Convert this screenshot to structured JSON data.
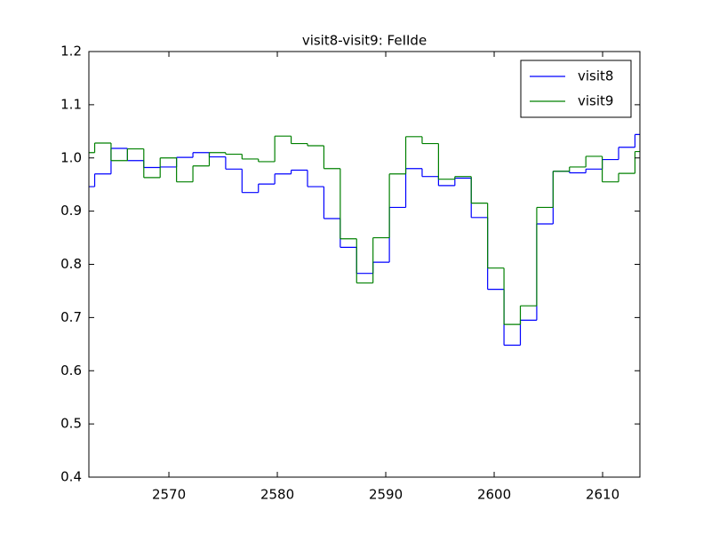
{
  "chart_data": {
    "type": "step",
    "title": "visit8-visit9: FeIIde",
    "x": [
      2562.4,
      2563.91,
      2565.42,
      2566.93,
      2568.44,
      2569.95,
      2571.46,
      2572.97,
      2574.48,
      2575.99,
      2577.5,
      2579.01,
      2580.52,
      2582.03,
      2583.54,
      2585.05,
      2586.56,
      2588.07,
      2589.58,
      2591.09,
      2592.6,
      2594.11,
      2595.62,
      2597.13,
      2598.64,
      2600.15,
      2601.66,
      2603.17,
      2604.68,
      2606.19,
      2607.7,
      2609.21,
      2610.72,
      2612.23,
      2613.74
    ],
    "series": [
      {
        "name": "visit8",
        "color": "#0000ff",
        "values": [
          0.946,
          0.97,
          1.018,
          0.995,
          0.982,
          0.983,
          1.001,
          1.01,
          1.002,
          0.979,
          0.935,
          0.951,
          0.97,
          0.977,
          0.946,
          0.886,
          0.832,
          0.783,
          0.804,
          0.907,
          0.98,
          0.965,
          0.948,
          0.962,
          0.888,
          0.753,
          0.648,
          0.695,
          0.876,
          0.975,
          0.972,
          0.979,
          0.997,
          1.02,
          1.044
        ]
      },
      {
        "name": "visit9",
        "color": "#008000",
        "values": [
          1.01,
          1.028,
          0.995,
          1.017,
          0.963,
          1.0,
          0.955,
          0.985,
          1.01,
          1.007,
          0.998,
          0.993,
          1.041,
          1.027,
          1.023,
          0.98,
          0.848,
          0.765,
          0.85,
          0.97,
          1.04,
          1.027,
          0.96,
          0.965,
          0.915,
          0.793,
          0.687,
          0.722,
          0.907,
          0.975,
          0.983,
          1.003,
          0.955,
          0.971,
          1.012
        ]
      }
    ],
    "xlim": [
      2562.62,
      2613.44
    ],
    "ylim": [
      0.4,
      1.2
    ],
    "xticks": [
      2570,
      2580,
      2590,
      2600,
      2610
    ],
    "yticks": [
      0.4,
      0.5,
      0.6,
      0.7,
      0.8,
      0.9,
      {
        "value": 1.0,
        "label": "1.0"
      },
      1.1,
      1.2
    ],
    "legend": "upper right",
    "grid": false
  }
}
